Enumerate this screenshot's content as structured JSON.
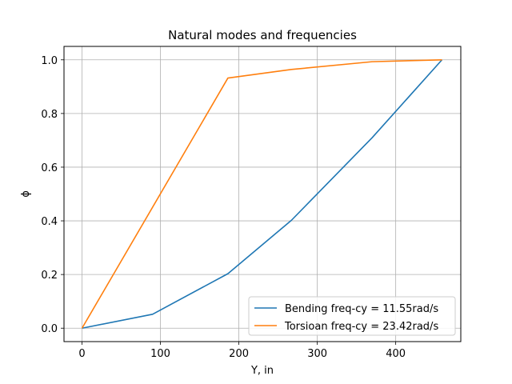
{
  "chart_data": {
    "type": "line",
    "title": "Natural modes and frequencies",
    "xlabel": "Y, in",
    "ylabel": "ϕ",
    "xlim": [
      -23,
      483
    ],
    "ylim": [
      -0.05,
      1.05
    ],
    "xticks": [
      0,
      100,
      200,
      300,
      400
    ],
    "xtick_labels": [
      "0",
      "100",
      "200",
      "300",
      "400"
    ],
    "yticks": [
      0.0,
      0.2,
      0.4,
      0.6,
      0.8,
      1.0
    ],
    "ytick_labels": [
      "0.0",
      "0.2",
      "0.4",
      "0.6",
      "0.8",
      "1.0"
    ],
    "grid": true,
    "legend_position": "lower-right",
    "series": [
      {
        "name": "Bending freq-cy = 11.55rad/s",
        "color": "#1f77b4",
        "x": [
          0,
          90,
          186,
          267,
          370,
          459
        ],
        "y": [
          0.0,
          0.052,
          0.203,
          0.402,
          0.71,
          1.0
        ]
      },
      {
        "name": "Torsioan freq-cy = 23.42rad/s",
        "color": "#ff7f0e",
        "x": [
          0,
          186,
          267,
          370,
          459
        ],
        "y": [
          0.0,
          0.932,
          0.964,
          0.993,
          1.0
        ]
      }
    ]
  }
}
